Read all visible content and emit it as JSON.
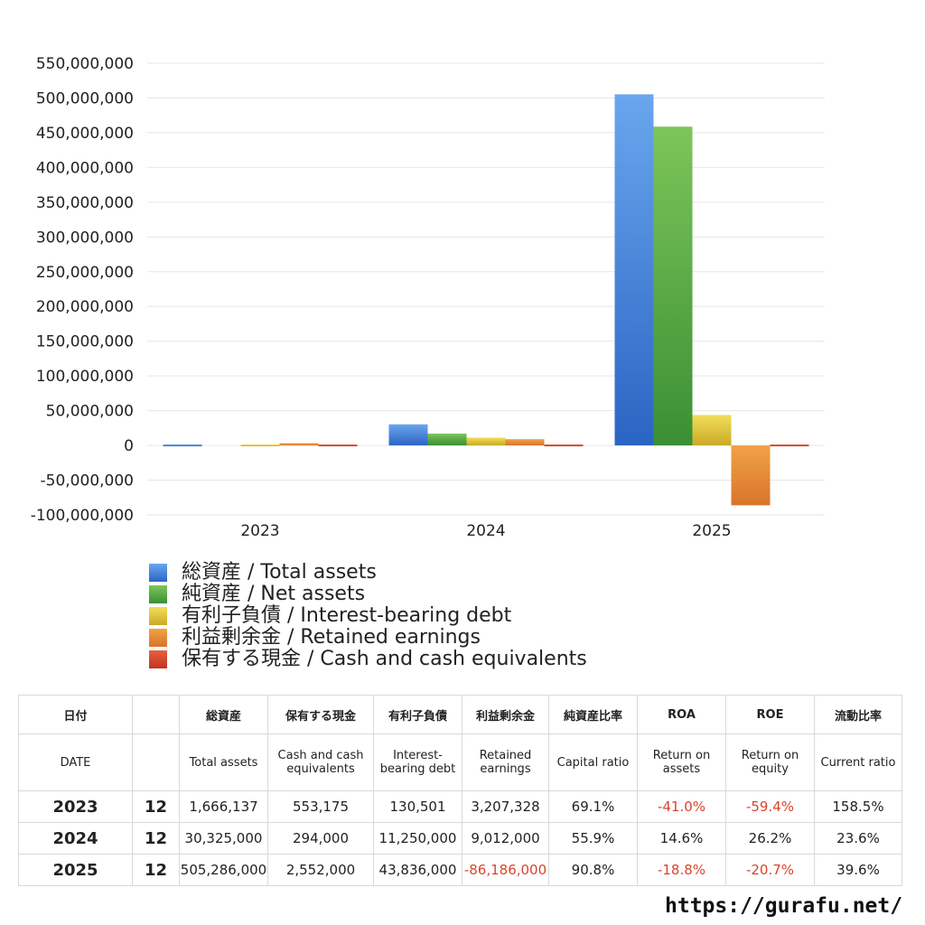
{
  "chart_data": {
    "type": "bar",
    "categories": [
      "2023",
      "2024",
      "2025"
    ],
    "series": [
      {
        "name": "総資産 / Total assets",
        "color": "#3a7fd5",
        "values": [
          1666137,
          30325000,
          505286000
        ]
      },
      {
        "name": "純資産 / Net assets",
        "color": "#4aa33f",
        "values": [
          null,
          16950000,
          458700000
        ]
      },
      {
        "name": "有利子負債 / Interest-bearing debt",
        "color": "#e0c12e",
        "values": [
          130501,
          11250000,
          43836000
        ]
      },
      {
        "name": "利益剰余金 / Retained earnings",
        "color": "#e88a2c",
        "values": [
          3207328,
          9012000,
          -86186000
        ]
      },
      {
        "name": "保有する現金 /  Cash and cash equivalents",
        "color": "#d9442b",
        "values": [
          553175,
          294000,
          2552000
        ]
      }
    ],
    "y_ticks": [
      "550,000,000",
      "500,000,000",
      "450,000,000",
      "400,000,000",
      "350,000,000",
      "300,000,000",
      "250,000,000",
      "200,000,000",
      "150,000,000",
      "100,000,000",
      "50,000,000",
      "0",
      "-50,000,000",
      "-100,000,000"
    ],
    "ylim": [
      -100000000,
      550000000
    ],
    "grid": true,
    "legend_position": "bottom-left"
  },
  "table": {
    "header_jp": [
      "日付",
      "",
      "総資産",
      "保有する現金",
      "有利子負債",
      "利益剰余金",
      "純資産比率",
      "ROA",
      "ROE",
      "流動比率"
    ],
    "header_en": [
      "DATE",
      "",
      "Total assets",
      "Cash and cash equivalents",
      "Interest-bearing debt",
      "Retained earnings",
      "Capital ratio",
      "Return on assets",
      "Return on equity",
      "Current ratio"
    ],
    "rows": [
      {
        "year": "2023",
        "month": "12",
        "total_assets": "1,666,137",
        "cash": "553,175",
        "debt": "130,501",
        "retained": "3,207,328",
        "capital_ratio": "69.1%",
        "roa": "-41.0%",
        "roe": "-59.4%",
        "current_ratio": "158.5%"
      },
      {
        "year": "2024",
        "month": "12",
        "total_assets": "30,325,000",
        "cash": "294,000",
        "debt": "11,250,000",
        "retained": "9,012,000",
        "capital_ratio": "55.9%",
        "roa": "14.6%",
        "roe": "26.2%",
        "current_ratio": "23.6%"
      },
      {
        "year": "2025",
        "month": "12",
        "total_assets": "505,286,000",
        "cash": "2,552,000",
        "debt": "43,836,000",
        "retained": "-86,186,000",
        "capital_ratio": "90.8%",
        "roa": "-18.8%",
        "roe": "-20.7%",
        "current_ratio": "39.6%"
      }
    ]
  },
  "footer": {
    "url": "https://gurafu.net/"
  }
}
